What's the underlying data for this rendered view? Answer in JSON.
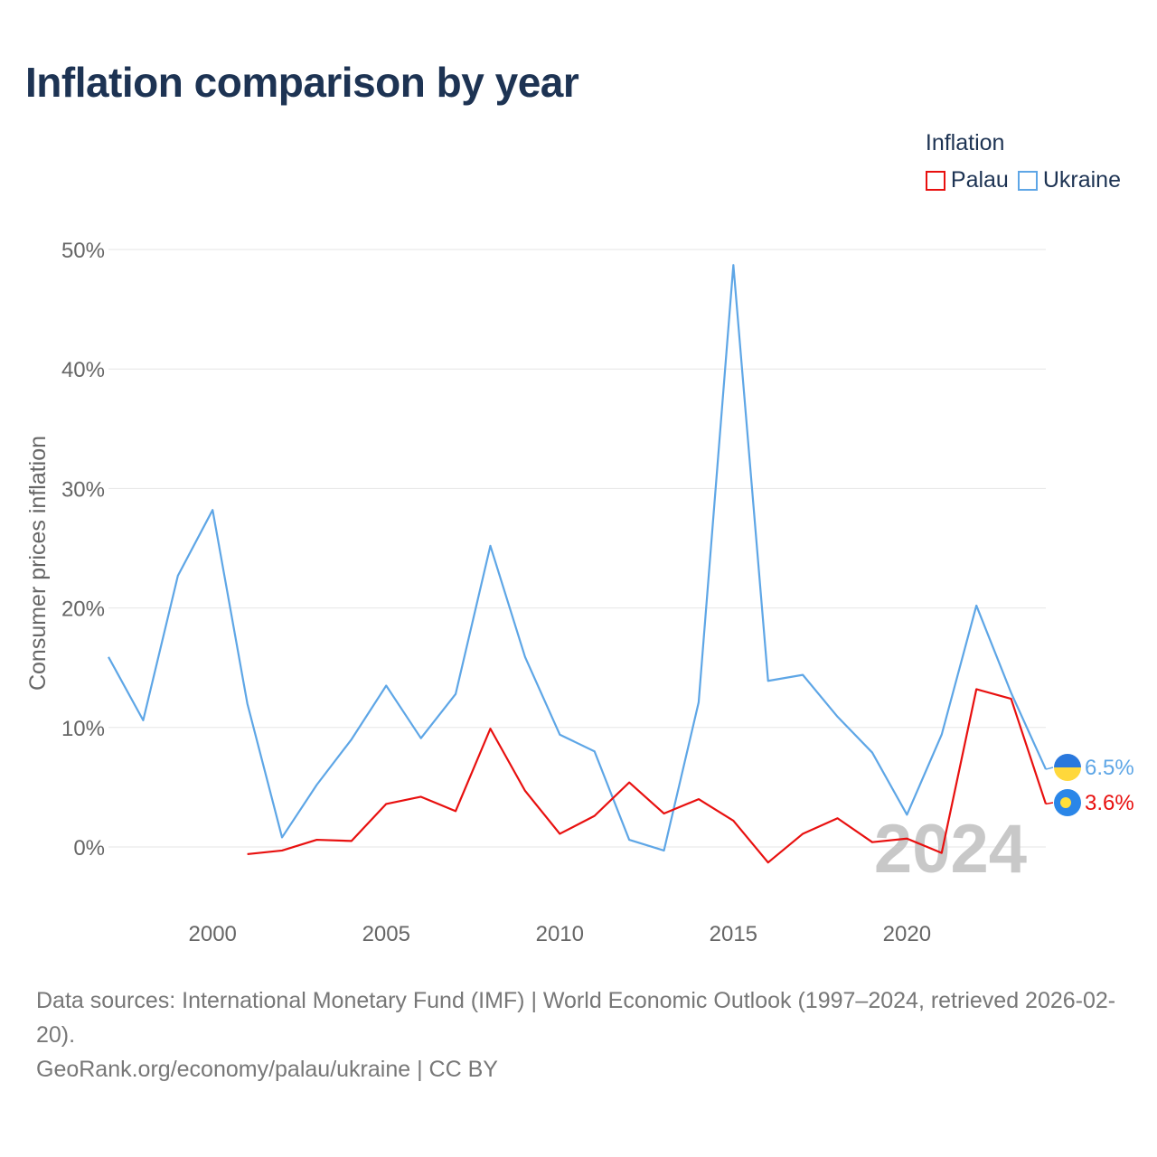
{
  "title": "Inflation comparison by year",
  "legend": {
    "title": "Inflation",
    "items": [
      {
        "name": "Palau",
        "color": "#e8100f"
      },
      {
        "name": "Ukraine",
        "color": "#5ea6e6"
      }
    ]
  },
  "watermark_year": "2024",
  "end_labels": {
    "Palau": "3.6%",
    "Ukraine": "6.5%"
  },
  "footer": {
    "sources": "Data sources: International Monetary Fund (IMF) | World Economic Outlook (1997–2024, retrieved 2026-02-20).",
    "credit": "GeoRank.org/economy/palau/ukraine | CC BY"
  },
  "chart_data": {
    "type": "line",
    "title": "Inflation comparison by year",
    "xlabel": "",
    "ylabel": "Consumer prices inflation",
    "xlim": [
      1997,
      2024
    ],
    "ylim": [
      -5,
      52
    ],
    "x_ticks": [
      2000,
      2005,
      2010,
      2015,
      2020
    ],
    "y_ticks": [
      0,
      10,
      20,
      30,
      40,
      50
    ],
    "y_tick_labels": [
      "0%",
      "10%",
      "20%",
      "30%",
      "40%",
      "50%"
    ],
    "grid": true,
    "series": [
      {
        "name": "Ukraine",
        "color": "#5ea6e6",
        "x": [
          1997,
          1998,
          1999,
          2000,
          2001,
          2002,
          2003,
          2004,
          2005,
          2006,
          2007,
          2008,
          2009,
          2010,
          2011,
          2012,
          2013,
          2014,
          2015,
          2016,
          2017,
          2018,
          2019,
          2020,
          2021,
          2022,
          2023,
          2024
        ],
        "values": [
          15.9,
          10.6,
          22.7,
          28.2,
          12.0,
          0.8,
          5.2,
          9.0,
          13.5,
          9.1,
          12.8,
          25.2,
          15.9,
          9.4,
          8.0,
          0.6,
          -0.3,
          12.1,
          48.7,
          13.9,
          14.4,
          10.9,
          7.9,
          2.7,
          9.4,
          20.2,
          12.9,
          6.5
        ]
      },
      {
        "name": "Palau",
        "color": "#e8100f",
        "x": [
          2001,
          2002,
          2003,
          2004,
          2005,
          2006,
          2007,
          2008,
          2009,
          2010,
          2011,
          2012,
          2013,
          2014,
          2015,
          2016,
          2017,
          2018,
          2019,
          2020,
          2021,
          2022,
          2023,
          2024
        ],
        "values": [
          -0.6,
          -0.3,
          0.6,
          0.5,
          3.6,
          4.2,
          3.0,
          9.9,
          4.7,
          1.1,
          2.6,
          5.4,
          2.8,
          4.0,
          2.2,
          -1.3,
          1.1,
          2.4,
          0.4,
          0.7,
          -0.5,
          13.2,
          12.4,
          3.6
        ]
      }
    ]
  }
}
